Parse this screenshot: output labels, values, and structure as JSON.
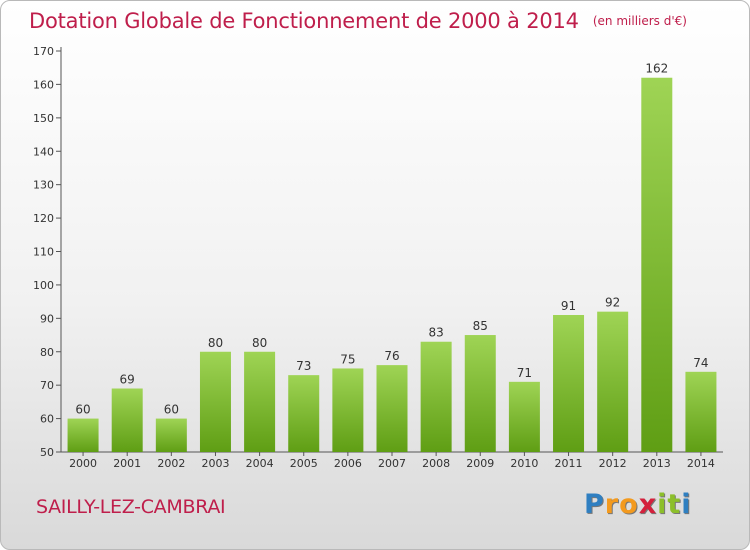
{
  "title": "Dotation Globale de Fonctionnement de 2000 à 2014",
  "unit_note": "(en milliers d'€)",
  "commune": "SAILLY-LEZ-CAMBRAI",
  "brand": "Proxiti",
  "brand_letters": [
    {
      "ch": "P",
      "color": "#2f7fc1"
    },
    {
      "ch": "r",
      "color": "#f39a1e"
    },
    {
      "ch": "o",
      "color": "#f39a1e"
    },
    {
      "ch": "x",
      "color": "#d4203c"
    },
    {
      "ch": "i",
      "color": "#8cbf2a"
    },
    {
      "ch": "t",
      "color": "#8cbf2a"
    },
    {
      "ch": "i",
      "color": "#2f7fc1"
    }
  ],
  "colors": {
    "title": "#bf1e4b",
    "bar_light": "#9fd455",
    "bar_dark": "#5f9e14"
  },
  "chart_data": {
    "type": "bar",
    "title": "Dotation Globale de Fonctionnement de 2000 à 2014",
    "subtitle": "(en milliers d'€)",
    "categories": [
      "2000",
      "2001",
      "2002",
      "2003",
      "2004",
      "2005",
      "2006",
      "2007",
      "2008",
      "2009",
      "2010",
      "2011",
      "2012",
      "2013",
      "2014"
    ],
    "values": [
      60,
      69,
      60,
      80,
      80,
      73,
      75,
      76,
      83,
      85,
      71,
      91,
      92,
      162,
      74
    ],
    "xlabel": "",
    "ylabel": "",
    "ylim": [
      50,
      170
    ],
    "yticks": [
      50,
      60,
      70,
      80,
      90,
      100,
      110,
      120,
      130,
      140,
      150,
      160,
      170
    ],
    "grid": false,
    "legend": "none"
  }
}
